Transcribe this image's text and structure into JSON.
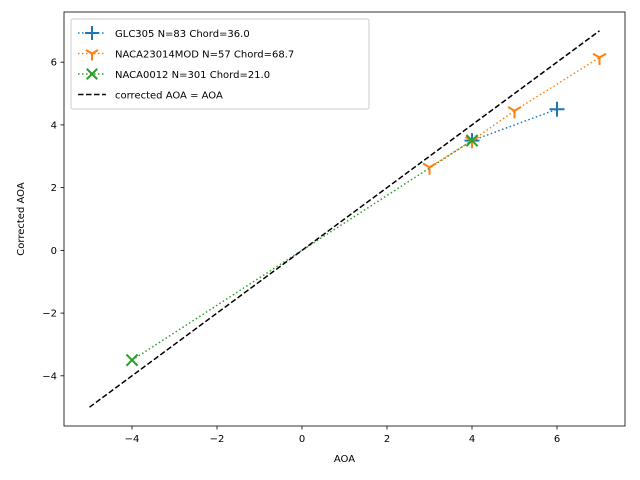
{
  "chart_data": {
    "type": "line",
    "title": "",
    "xlabel": "AOA",
    "ylabel": "Corrected AOA",
    "xlim": [
      -5.6,
      7.6
    ],
    "ylim": [
      -5.6,
      7.6
    ],
    "xticks": [
      -4,
      -2,
      0,
      2,
      4,
      6
    ],
    "yticks": [
      -4,
      -2,
      0,
      2,
      4,
      6
    ],
    "tick_labels_x": [
      "−4",
      "−2",
      "0",
      "2",
      "4",
      "6"
    ],
    "tick_labels_y": [
      "−4",
      "−2",
      "0",
      "2",
      "4",
      "6"
    ],
    "grid": false,
    "legend_position": "top-left",
    "series": [
      {
        "name": "GLC305 N=83 Chord=36.0",
        "color": "#1f77b4",
        "marker": "plus",
        "linestyle": "dotted",
        "points": [
          [
            4,
            3.5
          ],
          [
            6,
            4.5
          ]
        ]
      },
      {
        "name": "NACA23014MOD N=57 Chord=68.7",
        "color": "#ff7f0e",
        "marker": "tri-down",
        "linestyle": "dotted",
        "points": [
          [
            3,
            2.65
          ],
          [
            4,
            3.5
          ],
          [
            5,
            4.45
          ],
          [
            7,
            6.15
          ]
        ]
      },
      {
        "name": "NACA0012 N=301 Chord=21.0",
        "color": "#2ca02c",
        "marker": "x",
        "linestyle": "dotted",
        "points": [
          [
            -4,
            -3.5
          ],
          [
            4,
            3.5
          ]
        ]
      },
      {
        "name": "corrected AOA = AOA",
        "color": "#000000",
        "marker": "none",
        "linestyle": "dashed",
        "points": [
          [
            -5,
            -5
          ],
          [
            7,
            7
          ]
        ]
      }
    ]
  }
}
